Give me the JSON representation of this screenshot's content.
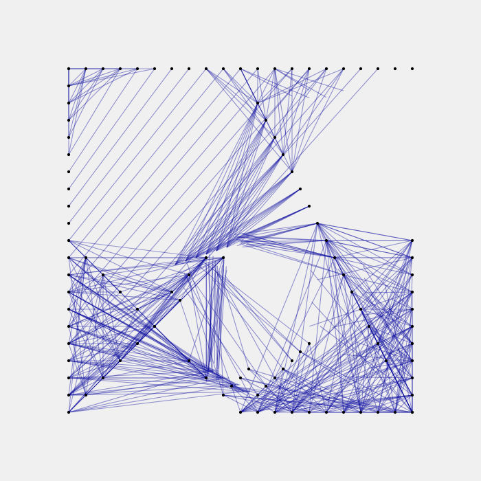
{
  "diagram": {
    "type": "string-art-graph",
    "colors": {
      "background": "#f0f0f0",
      "edge": "#0a0aa0",
      "node": "#000000"
    },
    "edge_opacity": 0.42,
    "grid_spacing": 25,
    "node_groups": [
      {
        "name": "top-edge-row",
        "count": 21
      },
      {
        "name": "left-column",
        "count": 21
      },
      {
        "name": "bottom-row",
        "count": 11
      },
      {
        "name": "right-column",
        "count": 11
      },
      {
        "name": "upper-diagonal-chain",
        "count": 7
      },
      {
        "name": "lower-diagonal-chain",
        "count": 11
      },
      {
        "name": "mid-diagonal-chain",
        "count": 9
      },
      {
        "name": "left-inner-block",
        "count": 16
      }
    ]
  }
}
